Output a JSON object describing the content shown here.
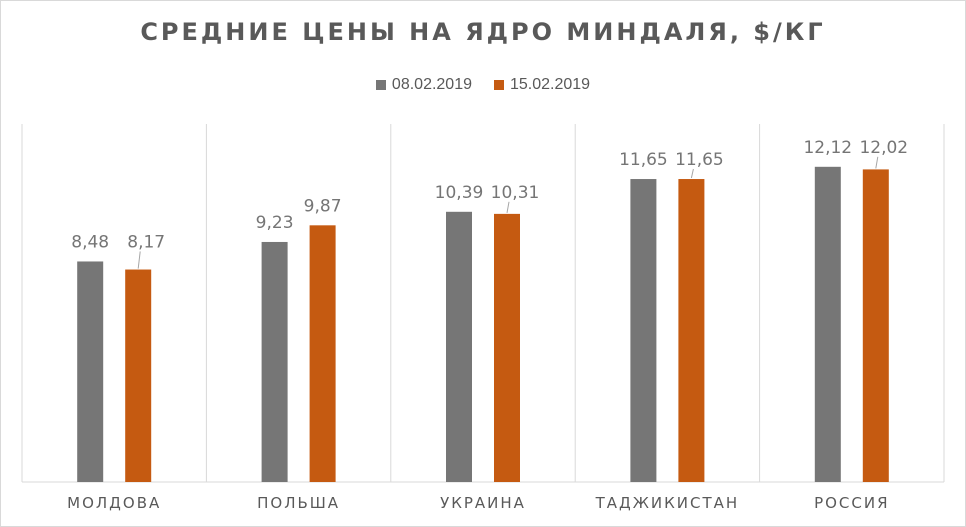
{
  "chart_data": {
    "type": "bar",
    "title": "СРЕДНИЕ ЦЕНЫ НА ЯДРО МИНДАЛЯ, $/КГ",
    "categories": [
      "МОЛДОВА",
      "ПОЛЬША",
      "УКРАИНА",
      "ТАДЖИКИСТАН",
      "РОССИЯ"
    ],
    "series": [
      {
        "name": "08.02.2019",
        "color": "#767676",
        "values": [
          8.48,
          9.23,
          10.39,
          11.65,
          12.12
        ],
        "labels": [
          "8,48",
          "9,23",
          "10,39",
          "11,65",
          "12,12"
        ]
      },
      {
        "name": "15.02.2019",
        "color": "#c55a11",
        "values": [
          8.17,
          9.87,
          10.31,
          11.65,
          12.02
        ],
        "labels": [
          "8,17",
          "9,87",
          "10,31",
          "11,65",
          "12,02"
        ]
      }
    ],
    "ylim": [
      0,
      14
    ],
    "grid": "vertical category separators",
    "legend": "top-center",
    "xlabel": "",
    "ylabel": ""
  }
}
